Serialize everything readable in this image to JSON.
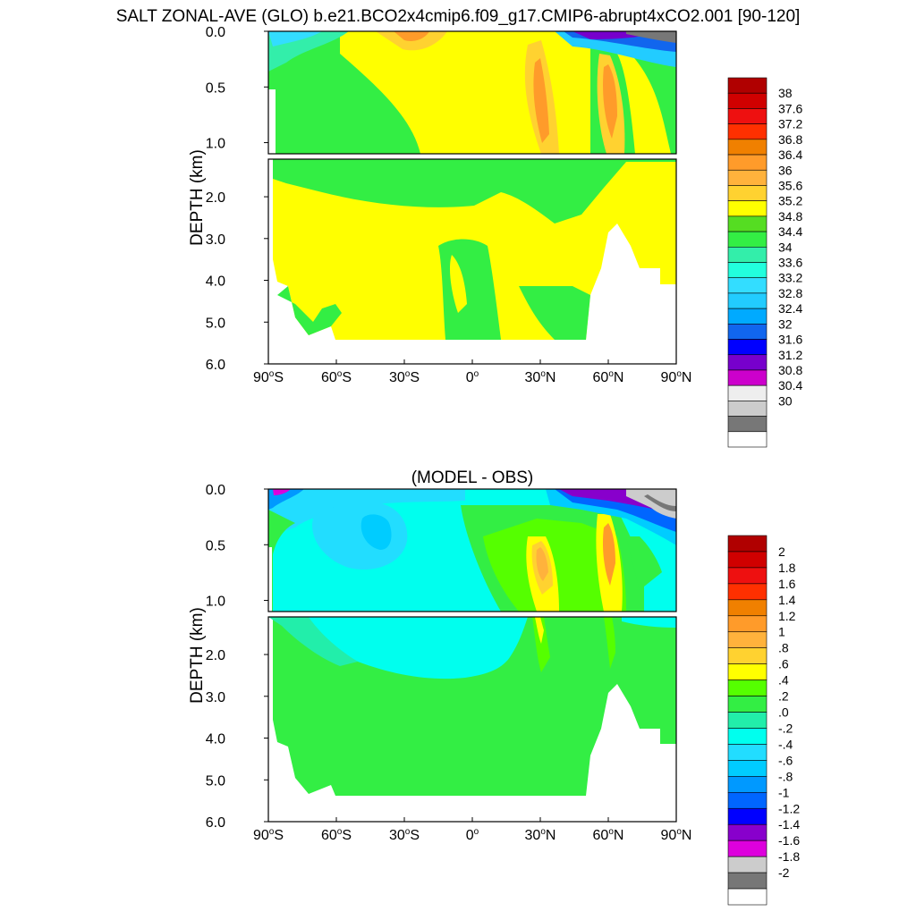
{
  "figure": {
    "title": "SALT ZONAL-AVE (GLO) b.e21.BCO2x4cmip6.f09_g17.CMIP6-abrupt4xCO2.001 [90-120]"
  },
  "chart_data": [
    {
      "type": "heatmap",
      "panel": "top",
      "title": "",
      "ylabel": "DEPTH (km)",
      "xlabel": "",
      "x_ticks": [
        "90°S",
        "60°S",
        "30°S",
        "0°",
        "30°N",
        "60°N",
        "90°N"
      ],
      "y_ticks_upper": [
        "0.0",
        "0.5",
        "1.0"
      ],
      "y_ticks_lower": [
        "2.0",
        "3.0",
        "4.0",
        "5.0",
        "6.0"
      ],
      "ylim_upper_km": [
        0,
        1.1
      ],
      "ylim_lower_km": [
        1.1,
        6.0
      ],
      "xlim_deg": [
        -90,
        90
      ],
      "colorbar_labels": [
        "38",
        "37.6",
        "37.2",
        "36.8",
        "36.4",
        "36",
        "35.6",
        "35.2",
        "34.8",
        "34.4",
        "34",
        "33.6",
        "33.2",
        "32.8",
        "32.4",
        "32",
        "31.6",
        "31.2",
        "30.8",
        "30.4",
        "30"
      ],
      "colorbar_colors": [
        "#b00000",
        "#d00000",
        "#ee1010",
        "#ff3000",
        "#f08000",
        "#ff9b2a",
        "#ffb23c",
        "#ffd230",
        "#ffff00",
        "#55dd22",
        "#33ee44",
        "#33eeaa",
        "#22ffdd",
        "#33ddff",
        "#22ccff",
        "#00aaff",
        "#1166ee",
        "#0000ff",
        "#7700cc",
        "#cc00cc",
        "#eeeeee",
        "#cccccc",
        "#777777",
        "#ffffff"
      ],
      "dominant_regions": [
        {
          "value_range": [
            34.8,
            35.2
          ],
          "description_region": "deep ocean below ~1.2 km"
        },
        {
          "value_range": [
            34.4,
            34.8
          ],
          "description_region": "Southern Ocean and intermediate waters"
        },
        {
          "value_range": [
            35.6,
            36.4
          ],
          "description_region": "subtropical maxima near 25°S, 35°N and 62°N"
        },
        {
          "value_range": [
            30.8,
            33.2
          ],
          "description_region": "Arctic surface layer"
        }
      ]
    },
    {
      "type": "heatmap",
      "panel": "bottom",
      "title": "(MODEL - OBS)",
      "ylabel": "DEPTH (km)",
      "xlabel": "",
      "x_ticks": [
        "90°S",
        "60°S",
        "30°S",
        "0°",
        "30°N",
        "60°N",
        "90°N"
      ],
      "y_ticks_upper": [
        "0.0",
        "0.5",
        "1.0"
      ],
      "y_ticks_lower": [
        "2.0",
        "3.0",
        "4.0",
        "5.0",
        "6.0"
      ],
      "ylim_upper_km": [
        0,
        1.1
      ],
      "ylim_lower_km": [
        1.1,
        6.0
      ],
      "xlim_deg": [
        -90,
        90
      ],
      "colorbar_labels": [
        "2",
        "1.8",
        "1.6",
        "1.4",
        "1.2",
        "1",
        ".8",
        ".6",
        ".4",
        ".2",
        ".0",
        "-.2",
        "-.4",
        "-.6",
        "-.8",
        "-1",
        "-1.2",
        "-1.4",
        "-1.6",
        "-1.8",
        "-2"
      ],
      "colorbar_colors": [
        "#b00000",
        "#d00000",
        "#ee1010",
        "#ff3000",
        "#f08000",
        "#ff9b2a",
        "#ffb23c",
        "#ffd230",
        "#ffff00",
        "#55ff00",
        "#33ee44",
        "#22eeaa",
        "#00ffee",
        "#22ddff",
        "#00ccff",
        "#0099ff",
        "#0066ff",
        "#0000ff",
        "#8800cc",
        "#dd00dd",
        "#cccccc",
        "#777777",
        "#ffffff"
      ],
      "dominant_regions": [
        {
          "value_range": [
            0.0,
            0.2
          ],
          "description_region": "deep ocean below ~1.2 km"
        },
        {
          "value_range": [
            -0.2,
            0.0
          ],
          "description_region": "Southern Hemisphere intermediate waters"
        },
        {
          "value_range": [
            0.6,
            1.0
          ],
          "description_region": "maxima near 35°N and 62°N"
        },
        {
          "value_range": [
            -2.0,
            -1.2
          ],
          "description_region": "Arctic surface layer"
        }
      ]
    }
  ]
}
